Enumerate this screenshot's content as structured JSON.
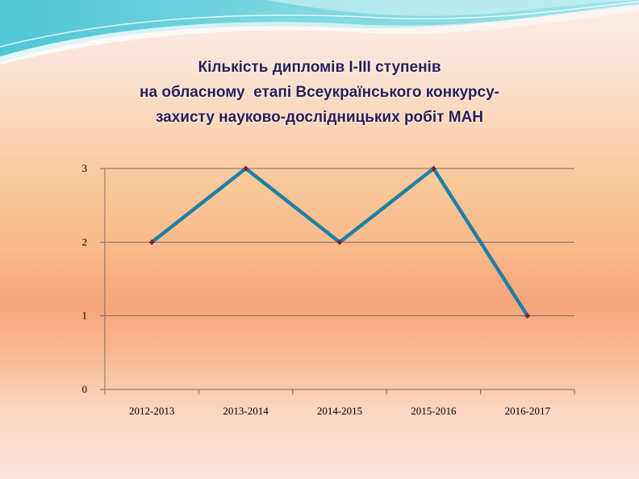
{
  "title_lines": [
    "Кількість дипломів І-ІІІ ступенів",
    "на обласному  етапі Всеукраїнського конкурсу-",
    "захисту науково-дослідницьких робіт МАН"
  ],
  "colors": {
    "line": "#1f7fa6",
    "marker": "#8b1a3a",
    "title": "#2a1d57"
  },
  "chart_data": {
    "type": "line",
    "categories": [
      "2012-2013",
      "2013-2014",
      "2014-2015",
      "2015-2016",
      "2016-2017"
    ],
    "series": [
      {
        "values": [
          2,
          3,
          2,
          3,
          1
        ]
      }
    ],
    "ylim": [
      0,
      3
    ],
    "yticks": [
      0,
      1,
      2,
      3
    ],
    "grid": true,
    "legend": "none"
  }
}
